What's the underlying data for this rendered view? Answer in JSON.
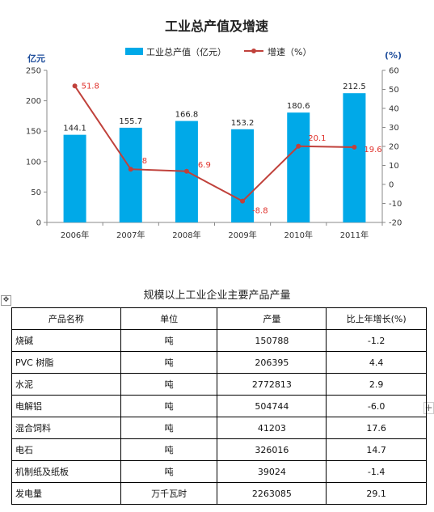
{
  "chart_data": {
    "type": "bar",
    "title": "工业总产值及增速",
    "categories": [
      "2006年",
      "2007年",
      "2008年",
      "2009年",
      "2010年",
      "2011年"
    ],
    "series": [
      {
        "name": "工业总产值（亿元）",
        "kind": "bar",
        "axis": "left",
        "color": "#00a9e8",
        "values": [
          144.1,
          155.7,
          166.8,
          153.2,
          180.6,
          212.5
        ],
        "labels": [
          "144.1",
          "155.7",
          "166.8",
          "153.2",
          "180.6",
          "212.5"
        ]
      },
      {
        "name": "增速（%）",
        "kind": "line",
        "axis": "right",
        "color": "#c0413b",
        "values": [
          51.8,
          8,
          6.9,
          -8.8,
          20.1,
          19.6
        ],
        "labels": [
          "51.8",
          "8",
          "6.9",
          "-8.8",
          "20.1",
          "19.6"
        ]
      }
    ],
    "y_left": {
      "unit": "亿元",
      "ylim": [
        0,
        250
      ],
      "ticks": [
        "0",
        "50",
        "100",
        "150",
        "200",
        "250"
      ]
    },
    "y_right": {
      "unit": "(%)",
      "ylim": [
        -20,
        60
      ],
      "ticks": [
        "-20",
        "-10",
        "0",
        "10",
        "20",
        "30",
        "40",
        "50",
        "60"
      ]
    },
    "grid": false,
    "legend": "top"
  },
  "table": {
    "title": "规模以上工业企业主要产品产量",
    "headers": [
      "产品名称",
      "单位",
      "产量",
      "比上年增长(%)"
    ],
    "rows": [
      [
        "烧碱",
        "吨",
        "150788",
        "-1.2"
      ],
      [
        "PVC 树脂",
        "吨",
        "206395",
        "4.4"
      ],
      [
        "水泥",
        "吨",
        "2772813",
        "2.9"
      ],
      [
        "电解铝",
        "吨",
        "504744",
        "-6.0"
      ],
      [
        "混合饲料",
        "吨",
        "41203",
        "17.6"
      ],
      [
        "电石",
        "吨",
        "326016",
        "14.7"
      ],
      [
        "机制纸及纸板",
        "吨",
        "39024",
        "-1.4"
      ],
      [
        "发电量",
        "万千瓦时",
        "2263085",
        "29.1"
      ]
    ]
  },
  "handles": {
    "move": "✥",
    "add": "+"
  }
}
